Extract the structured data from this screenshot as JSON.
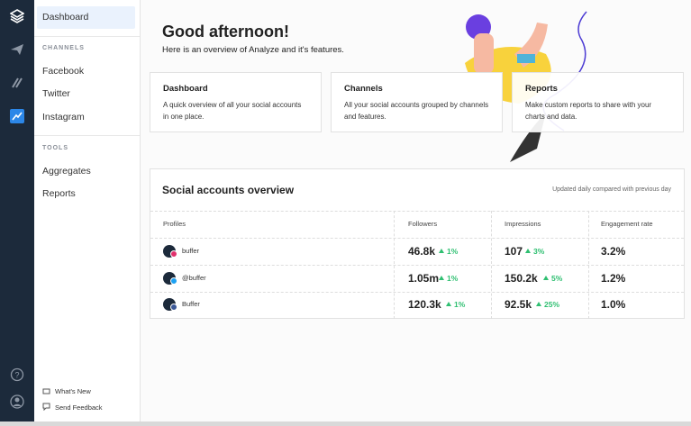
{
  "sidebar": {
    "active": "Dashboard",
    "sections": [
      {
        "heading": "CHANNELS",
        "items": [
          "Facebook",
          "Twitter",
          "Instagram"
        ]
      },
      {
        "heading": "TOOLS",
        "items": [
          "Aggregates",
          "Reports"
        ]
      }
    ],
    "footer": [
      "What's New",
      "Send Feedback"
    ]
  },
  "header": {
    "title": "Good afternoon!",
    "subtitle": "Here is an overview of Analyze and it's features."
  },
  "cards": [
    {
      "title": "Dashboard",
      "text": "A quick overview of all your social accounts in one place."
    },
    {
      "title": "Channels",
      "text": "All your social accounts grouped by channels and features."
    },
    {
      "title": "Reports",
      "text": "Make custom reports to share with your charts and data."
    }
  ],
  "overview": {
    "title": "Social accounts overview",
    "note": "Updated daily compared with previous day",
    "columns": [
      "Profiles",
      "Followers",
      "Impressions",
      "Engagement rate"
    ],
    "rows": [
      {
        "profile": "buffer",
        "followers": "46.8k",
        "followers_change": "1%",
        "impressions": "107",
        "impressions_change": "3%",
        "engagement": "3.2%"
      },
      {
        "profile": "@buffer",
        "followers": "1.05m",
        "followers_change": "1%",
        "impressions": "150.2k",
        "impressions_change": "5%",
        "engagement": "1.2%"
      },
      {
        "profile": "Buffer",
        "followers": "120.3k",
        "followers_change": "1%",
        "impressions": "92.5k",
        "impressions_change": "25%",
        "engagement": "1.0%"
      }
    ]
  }
}
